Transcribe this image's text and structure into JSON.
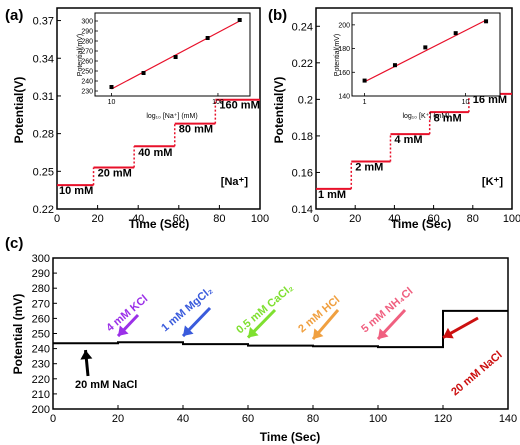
{
  "chart_data": [
    {
      "panel": "(a)",
      "type": "line",
      "xlabel": "Time (Sec)",
      "ylabel": "Potential(V)",
      "xlim": [
        0,
        100
      ],
      "ylim": [
        0.22,
        0.38
      ],
      "xticks": [
        "0",
        "20",
        "40",
        "60",
        "80",
        "100"
      ],
      "yticks": [
        "0.22",
        "0.25",
        "0.28",
        "0.31",
        "0.34",
        "0.37"
      ],
      "ion_label": "[Na⁺]",
      "series": [
        {
          "values": [
            {
              "x": 0,
              "y": 0.239
            },
            {
              "x": 18,
              "y": 0.239
            },
            {
              "x": 18,
              "y": 0.253
            },
            {
              "x": 38,
              "y": 0.253
            },
            {
              "x": 38,
              "y": 0.27
            },
            {
              "x": 58,
              "y": 0.27
            },
            {
              "x": 58,
              "y": 0.288
            },
            {
              "x": 78,
              "y": 0.288
            },
            {
              "x": 78,
              "y": 0.307
            },
            {
              "x": 100,
              "y": 0.307
            }
          ]
        }
      ],
      "step_labels": [
        {
          "text": "10 mM",
          "x": 1,
          "y": 0.232
        },
        {
          "text": "20 mM",
          "x": 20,
          "y": 0.246
        },
        {
          "text": "40 mM",
          "x": 40,
          "y": 0.262
        },
        {
          "text": "80 mM",
          "x": 60,
          "y": 0.281
        },
        {
          "text": "160 mM",
          "x": 80,
          "y": 0.3
        }
      ],
      "inset": {
        "type": "scatter",
        "xlabel": "log₁₀ [Na⁺] (mM)",
        "ylabel": "Potential(mV)",
        "xscale": "log",
        "xlim": [
          7,
          200
        ],
        "ylim": [
          225,
          308
        ],
        "xticks": [
          "10",
          "100"
        ],
        "yticks": [
          "230",
          "240",
          "250",
          "260",
          "270",
          "280",
          "290",
          "300"
        ],
        "points": [
          {
            "x": 10,
            "y": 234
          },
          {
            "x": 20,
            "y": 248
          },
          {
            "x": 40,
            "y": 264
          },
          {
            "x": 80,
            "y": 283
          },
          {
            "x": 160,
            "y": 301
          }
        ],
        "fit": [
          {
            "x": 10,
            "y": 232
          },
          {
            "x": 160,
            "y": 300
          }
        ]
      }
    },
    {
      "panel": "(b)",
      "type": "line",
      "xlabel": "Time (Sec)",
      "ylabel": "Potential(V)",
      "xlim": [
        0,
        100
      ],
      "ylim": [
        0.14,
        0.25
      ],
      "xticks": [
        "0",
        "20",
        "40",
        "60",
        "80",
        "100"
      ],
      "yticks": [
        "0.14",
        "0.16",
        "0.18",
        "0.2",
        "0.22",
        "0.24"
      ],
      "ion_label": "[K⁺]",
      "series": [
        {
          "values": [
            {
              "x": 0,
              "y": 0.151
            },
            {
              "x": 18,
              "y": 0.151
            },
            {
              "x": 18,
              "y": 0.166
            },
            {
              "x": 38,
              "y": 0.166
            },
            {
              "x": 38,
              "y": 0.181
            },
            {
              "x": 58,
              "y": 0.181
            },
            {
              "x": 58,
              "y": 0.193
            },
            {
              "x": 78,
              "y": 0.193
            },
            {
              "x": 78,
              "y": 0.203
            },
            {
              "x": 100,
              "y": 0.203
            }
          ]
        }
      ],
      "step_labels": [
        {
          "text": "1 mM",
          "x": 1,
          "y": 0.146
        },
        {
          "text": "2 mM",
          "x": 20,
          "y": 0.161
        },
        {
          "text": "4 mM",
          "x": 40,
          "y": 0.176
        },
        {
          "text": "8 mM",
          "x": 60,
          "y": 0.188
        },
        {
          "text": "16 mM",
          "x": 80,
          "y": 0.198
        }
      ],
      "inset": {
        "type": "scatter",
        "xlabel": "log₁₀ [K⁺] (mM)",
        "ylabel": "Potential(mV)",
        "xscale": "log",
        "xlim": [
          0.75,
          22
        ],
        "ylim": [
          140,
          210
        ],
        "xticks": [
          "1",
          "10"
        ],
        "yticks": [
          "140",
          "160",
          "180",
          "200"
        ],
        "points": [
          {
            "x": 1,
            "y": 153
          },
          {
            "x": 2,
            "y": 166
          },
          {
            "x": 4,
            "y": 181
          },
          {
            "x": 8,
            "y": 193
          },
          {
            "x": 16,
            "y": 203
          }
        ],
        "fit": [
          {
            "x": 1,
            "y": 152
          },
          {
            "x": 16,
            "y": 204
          }
        ]
      }
    },
    {
      "panel": "(c)",
      "type": "line",
      "xlabel": "Time (Sec)",
      "ylabel": "Potential (mV)",
      "xlim": [
        0,
        140
      ],
      "ylim": [
        200,
        300
      ],
      "xticks": [
        "0",
        "20",
        "40",
        "60",
        "80",
        "100",
        "120",
        "140"
      ],
      "yticks": [
        "200",
        "210",
        "220",
        "230",
        "240",
        "250",
        "260",
        "270",
        "280",
        "290",
        "300"
      ],
      "series": [
        {
          "values": [
            {
              "x": 0,
              "y": 243.5
            },
            {
              "x": 20,
              "y": 243.5
            },
            {
              "x": 20,
              "y": 244.2
            },
            {
              "x": 40,
              "y": 244.2
            },
            {
              "x": 40,
              "y": 243
            },
            {
              "x": 60,
              "y": 243
            },
            {
              "x": 60,
              "y": 242
            },
            {
              "x": 80,
              "y": 242
            },
            {
              "x": 80,
              "y": 241.5
            },
            {
              "x": 100,
              "y": 241.5
            },
            {
              "x": 100,
              "y": 241
            },
            {
              "x": 120,
              "y": 241
            },
            {
              "x": 120,
              "y": 265
            },
            {
              "x": 140,
              "y": 265
            }
          ]
        }
      ],
      "annotations": [
        {
          "text": "20 mM  NaCl",
          "color": "#000000",
          "arrow_to": {
            "x": 10,
            "y": 243
          }
        },
        {
          "text": "4 mM  KCl",
          "color": "#9b30e8",
          "arrow_to": {
            "x": 20,
            "y": 245
          }
        },
        {
          "text": "1 mM  MgCl₂",
          "color": "#3a5bdc",
          "arrow_to": {
            "x": 40,
            "y": 245
          }
        },
        {
          "text": "0.5 mM  CaCl₂",
          "color": "#7fe030",
          "arrow_to": {
            "x": 60,
            "y": 244
          }
        },
        {
          "text": "2 mM  HCl",
          "color": "#f0a040",
          "arrow_to": {
            "x": 80,
            "y": 243
          }
        },
        {
          "text": "5 mM  NH₄Cl",
          "color": "#f06080",
          "arrow_to": {
            "x": 100,
            "y": 243
          }
        },
        {
          "text": "20 mM  NaCl",
          "color": "#cc1010",
          "arrow_to": {
            "x": 120,
            "y": 244
          }
        }
      ]
    }
  ]
}
